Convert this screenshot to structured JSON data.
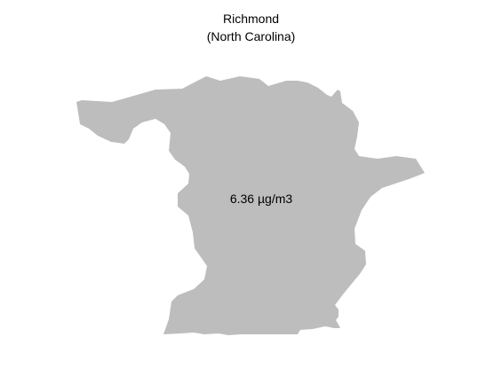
{
  "map": {
    "title": "Richmond",
    "subtitle": "(North Carolina)",
    "region_value_label": "6.36 µg/m3",
    "colors": {
      "region_fill": "#bdbdbd",
      "background": "#ffffff",
      "text": "#000000"
    }
  }
}
